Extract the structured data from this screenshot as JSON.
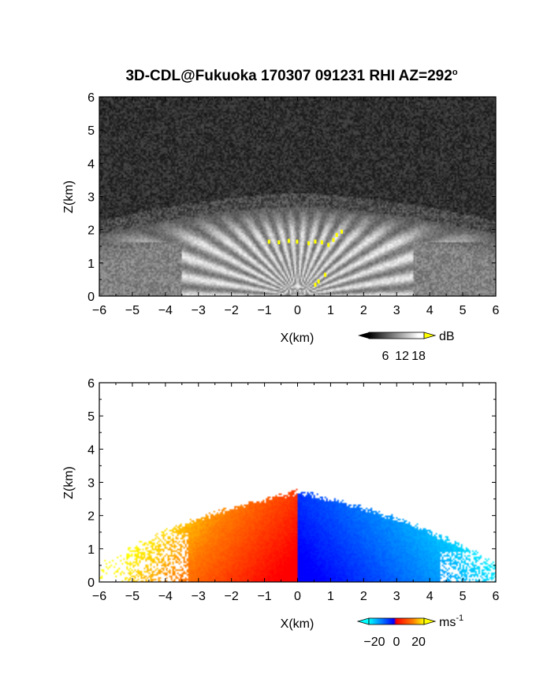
{
  "chart_data": [
    {
      "type": "heatmap",
      "title": "3D-CDL@Fukuoka 170307 091231 RHI AZ=292",
      "title_superscript": "o",
      "xlabel": "X(km)",
      "ylabel": "Z(km)",
      "xlim": [
        -6,
        6
      ],
      "ylim": [
        0,
        6
      ],
      "x_ticks": [
        "-6",
        "-5",
        "-4",
        "-3",
        "-2",
        "-1",
        "0",
        "1",
        "2",
        "3",
        "4",
        "5",
        "6"
      ],
      "y_ticks": [
        "0",
        "1",
        "2",
        "3",
        "4",
        "5",
        "6"
      ],
      "field": "SNR",
      "colorbar": {
        "unit": "dB",
        "ticks": [
          "6",
          "12",
          "18"
        ],
        "range": [
          0,
          20
        ]
      },
      "description_values": {
        "echo_top_km": 2.7,
        "background": "noise"
      },
      "colors": {
        "low": "#000000",
        "high": "#ffffff",
        "saturate": "#ffff00"
      }
    },
    {
      "type": "heatmap",
      "title": "",
      "xlabel": "X(km)",
      "ylabel": "Z(km)",
      "xlim": [
        -6,
        6
      ],
      "ylim": [
        0,
        6
      ],
      "x_ticks": [
        "-6",
        "-5",
        "-4",
        "-3",
        "-2",
        "-1",
        "0",
        "1",
        "2",
        "3",
        "4",
        "5",
        "6"
      ],
      "y_ticks": [
        "0",
        "1",
        "2",
        "3",
        "4",
        "5",
        "6"
      ],
      "field": "Doppler velocity",
      "colorbar": {
        "unit": "ms",
        "unit_exponent": "-1",
        "ticks": [
          "-20",
          "0",
          "20"
        ],
        "range": [
          -25,
          25
        ]
      },
      "colors": {
        "neg_low": "#00ffff",
        "neg": "#0000ff",
        "zero": "#ff0000",
        "pos": "#ff8000",
        "pos_high": "#ffff00"
      }
    }
  ]
}
